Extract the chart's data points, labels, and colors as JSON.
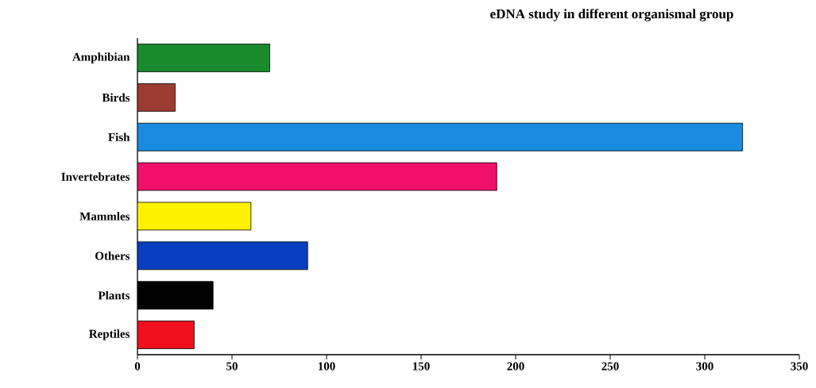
{
  "chart_data": {
    "type": "bar",
    "orientation": "horizontal",
    "title": "eDNA study in different organismal group",
    "categories": [
      "Amphibian",
      "Birds",
      "Fish",
      "Invertebrates",
      "Mammles",
      "Others",
      "Plants",
      "Reptiles"
    ],
    "values": [
      70,
      20,
      320,
      190,
      60,
      90,
      40,
      30
    ],
    "colors": [
      "#1a8a2e",
      "#9b3b32",
      "#1a8ce0",
      "#f0106a",
      "#fff200",
      "#0a3ec0",
      "#000000",
      "#f0101e"
    ],
    "xlim": [
      0,
      350
    ],
    "xticks": [
      0,
      50,
      100,
      150,
      200,
      250,
      300,
      350
    ],
    "grid": false
  }
}
